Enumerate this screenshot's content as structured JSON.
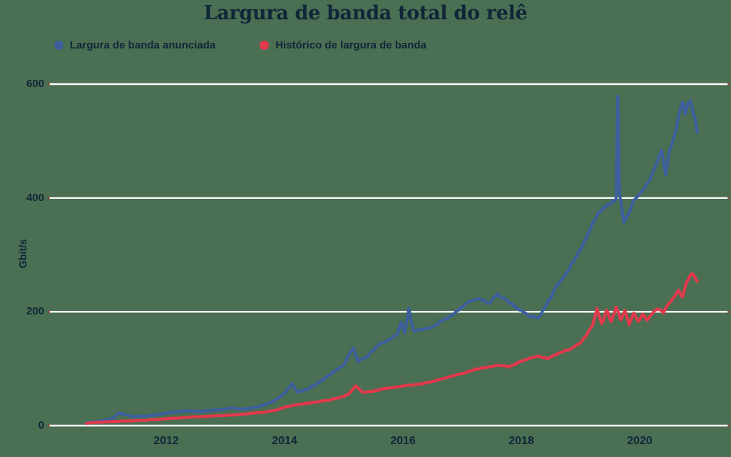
{
  "title": "Largura de banda total do relê",
  "colors": {
    "background": "#4A6F53",
    "grid": "#FFFFFF",
    "tick_cap": "#A03A2E",
    "text": "#112638",
    "advertised_line": "#3D5F9E",
    "history_line": "#E2394C"
  },
  "chart_data": {
    "type": "line",
    "title": "Largura de banda total do relê",
    "xlabel": "",
    "ylabel": "Gbit/s",
    "ylim": [
      0,
      600
    ],
    "xlim": [
      2010.5,
      2021.1
    ],
    "yticks": [
      0,
      200,
      400,
      600
    ],
    "xticks": [
      2012,
      2014,
      2016,
      2018,
      2020
    ],
    "grid": "horizontal-white-lines",
    "legend_position": "top-left",
    "series": [
      {
        "name": "Largura de banda anunciada",
        "color": "#3D5F9E",
        "units": "Gbit/s",
        "noise": {
          "base": 0.6,
          "k": 0.009,
          "max": 4
        },
        "points": [
          [
            2010.65,
            5
          ],
          [
            2010.9,
            8
          ],
          [
            2011.1,
            13
          ],
          [
            2011.2,
            22
          ],
          [
            2011.32,
            19
          ],
          [
            2011.45,
            16
          ],
          [
            2011.7,
            17
          ],
          [
            2012.0,
            22
          ],
          [
            2012.3,
            26
          ],
          [
            2012.6,
            25
          ],
          [
            2012.9,
            28
          ],
          [
            2013.1,
            31
          ],
          [
            2013.3,
            29
          ],
          [
            2013.55,
            33
          ],
          [
            2013.8,
            42
          ],
          [
            2014.0,
            57
          ],
          [
            2014.12,
            74
          ],
          [
            2014.22,
            59
          ],
          [
            2014.38,
            64
          ],
          [
            2014.55,
            74
          ],
          [
            2014.8,
            92
          ],
          [
            2015.0,
            107
          ],
          [
            2015.16,
            137
          ],
          [
            2015.24,
            113
          ],
          [
            2015.4,
            122
          ],
          [
            2015.6,
            143
          ],
          [
            2015.78,
            152
          ],
          [
            2015.9,
            160
          ],
          [
            2015.97,
            181
          ],
          [
            2016.03,
            163
          ],
          [
            2016.1,
            205
          ],
          [
            2016.18,
            166
          ],
          [
            2016.3,
            168
          ],
          [
            2016.45,
            172
          ],
          [
            2016.6,
            180
          ],
          [
            2016.8,
            192
          ],
          [
            2017.0,
            208
          ],
          [
            2017.15,
            220
          ],
          [
            2017.3,
            223
          ],
          [
            2017.45,
            216
          ],
          [
            2017.6,
            230
          ],
          [
            2017.72,
            222
          ],
          [
            2017.85,
            213
          ],
          [
            2018.0,
            202
          ],
          [
            2018.15,
            192
          ],
          [
            2018.3,
            190
          ],
          [
            2018.45,
            218
          ],
          [
            2018.6,
            245
          ],
          [
            2018.75,
            265
          ],
          [
            2018.9,
            292
          ],
          [
            2019.0,
            310
          ],
          [
            2019.1,
            330
          ],
          [
            2019.2,
            355
          ],
          [
            2019.3,
            372
          ],
          [
            2019.42,
            385
          ],
          [
            2019.52,
            392
          ],
          [
            2019.6,
            398
          ],
          [
            2019.63,
            581
          ],
          [
            2019.66,
            405
          ],
          [
            2019.73,
            358
          ],
          [
            2019.8,
            372
          ],
          [
            2019.9,
            395
          ],
          [
            2020.0,
            406
          ],
          [
            2020.1,
            420
          ],
          [
            2020.2,
            438
          ],
          [
            2020.3,
            465
          ],
          [
            2020.37,
            485
          ],
          [
            2020.44,
            441
          ],
          [
            2020.5,
            480
          ],
          [
            2020.56,
            500
          ],
          [
            2020.62,
            525
          ],
          [
            2020.68,
            555
          ],
          [
            2020.73,
            570
          ],
          [
            2020.77,
            546
          ],
          [
            2020.82,
            568
          ],
          [
            2020.86,
            572
          ],
          [
            2020.9,
            552
          ],
          [
            2020.94,
            540
          ],
          [
            2020.97,
            516
          ]
        ]
      },
      {
        "name": "Histórico de largura de banda",
        "color": "#E2394C",
        "units": "Gbit/s",
        "noise": {
          "base": 0.5,
          "k": 0.01,
          "max": 3
        },
        "points": [
          [
            2010.65,
            4
          ],
          [
            2011.0,
            7
          ],
          [
            2011.3,
            8
          ],
          [
            2011.6,
            9
          ],
          [
            2012.0,
            12
          ],
          [
            2012.4,
            15
          ],
          [
            2012.8,
            17
          ],
          [
            2013.0,
            18
          ],
          [
            2013.3,
            20
          ],
          [
            2013.6,
            23
          ],
          [
            2013.85,
            27
          ],
          [
            2014.0,
            32
          ],
          [
            2014.15,
            36
          ],
          [
            2014.3,
            38
          ],
          [
            2014.5,
            41
          ],
          [
            2014.75,
            45
          ],
          [
            2015.0,
            51
          ],
          [
            2015.1,
            57
          ],
          [
            2015.2,
            70
          ],
          [
            2015.32,
            58
          ],
          [
            2015.5,
            61
          ],
          [
            2015.7,
            65
          ],
          [
            2015.9,
            68
          ],
          [
            2016.1,
            71
          ],
          [
            2016.35,
            74
          ],
          [
            2016.6,
            80
          ],
          [
            2016.85,
            88
          ],
          [
            2017.05,
            93
          ],
          [
            2017.25,
            100
          ],
          [
            2017.45,
            103
          ],
          [
            2017.6,
            106
          ],
          [
            2017.8,
            104
          ],
          [
            2018.0,
            113
          ],
          [
            2018.15,
            118
          ],
          [
            2018.3,
            122
          ],
          [
            2018.45,
            118
          ],
          [
            2018.6,
            126
          ],
          [
            2018.75,
            132
          ],
          [
            2018.9,
            138
          ],
          [
            2019.0,
            146
          ],
          [
            2019.1,
            160
          ],
          [
            2019.2,
            175
          ],
          [
            2019.28,
            205
          ],
          [
            2019.36,
            178
          ],
          [
            2019.44,
            204
          ],
          [
            2019.52,
            182
          ],
          [
            2019.6,
            209
          ],
          [
            2019.68,
            186
          ],
          [
            2019.75,
            203
          ],
          [
            2019.82,
            177
          ],
          [
            2019.9,
            198
          ],
          [
            2019.98,
            183
          ],
          [
            2020.05,
            197
          ],
          [
            2020.12,
            186
          ],
          [
            2020.2,
            196
          ],
          [
            2020.3,
            205
          ],
          [
            2020.4,
            199
          ],
          [
            2020.5,
            215
          ],
          [
            2020.6,
            228
          ],
          [
            2020.66,
            237
          ],
          [
            2020.72,
            226
          ],
          [
            2020.78,
            247
          ],
          [
            2020.85,
            262
          ],
          [
            2020.9,
            268
          ],
          [
            2020.97,
            252
          ]
        ]
      }
    ]
  }
}
